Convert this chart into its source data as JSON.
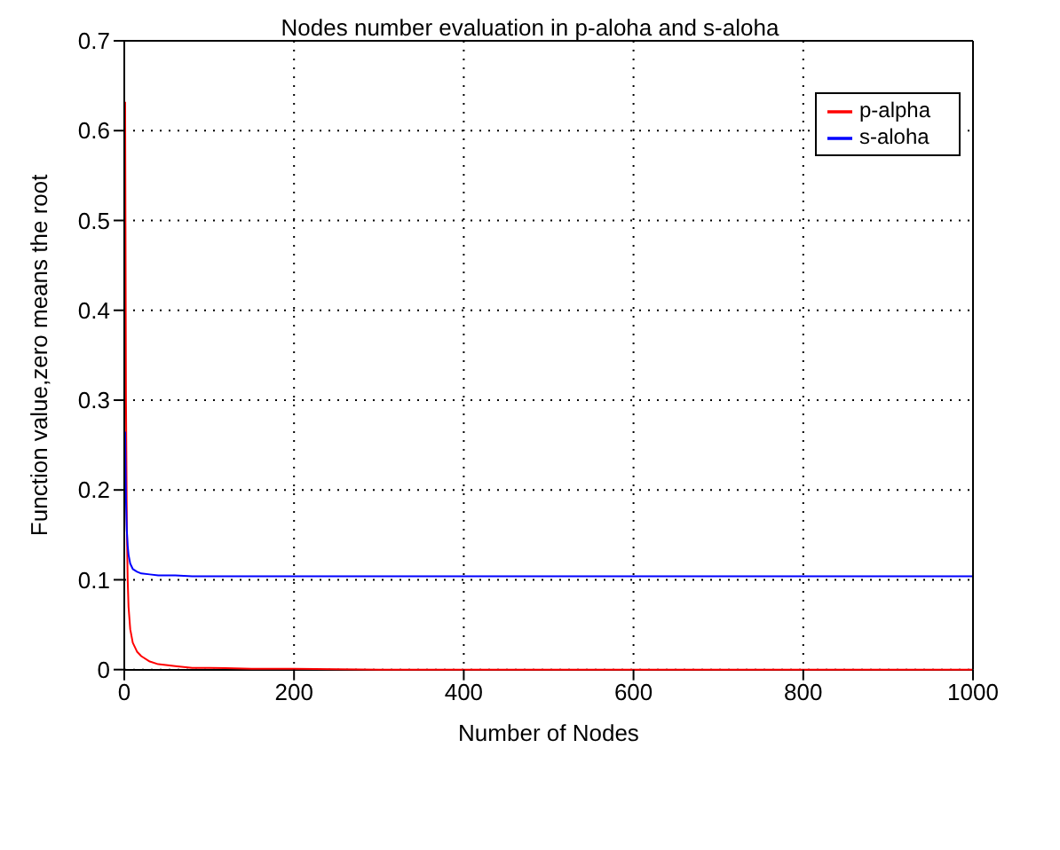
{
  "chart_data": {
    "type": "line",
    "title": "Nodes number evaluation in p-aloha and s-aloha",
    "xlabel": "Number of Nodes",
    "ylabel": "Function value,zero means the root",
    "x": [
      1,
      2,
      3,
      4,
      5,
      7,
      10,
      15,
      20,
      30,
      40,
      60,
      80,
      100,
      150,
      200,
      300,
      400,
      600,
      800,
      1000
    ],
    "series": [
      {
        "name": "p-alpha",
        "color": "#ff0000",
        "values": [
          0.632,
          0.3,
          0.16,
          0.1,
          0.07,
          0.045,
          0.03,
          0.02,
          0.015,
          0.009,
          0.006,
          0.004,
          0.002,
          0.002,
          0.001,
          0.001,
          0,
          0,
          0,
          0,
          0
        ]
      },
      {
        "name": "s-aloha",
        "color": "#0000ff",
        "values": [
          0.265,
          0.19,
          0.155,
          0.138,
          0.128,
          0.118,
          0.112,
          0.109,
          0.107,
          0.106,
          0.105,
          0.105,
          0.104,
          0.104,
          0.104,
          0.104,
          0.104,
          0.104,
          0.104,
          0.104,
          0.104
        ]
      }
    ],
    "xlim": [
      0,
      1000
    ],
    "xticks": [
      0,
      200,
      400,
      600,
      800,
      1000
    ],
    "ylim": [
      0,
      0.7
    ],
    "yticks": [
      0,
      0.1,
      0.2,
      0.3,
      0.4,
      0.5,
      0.6,
      0.7
    ],
    "grid": true,
    "legend": "top right",
    "line_style": "solid",
    "marker": "none"
  }
}
